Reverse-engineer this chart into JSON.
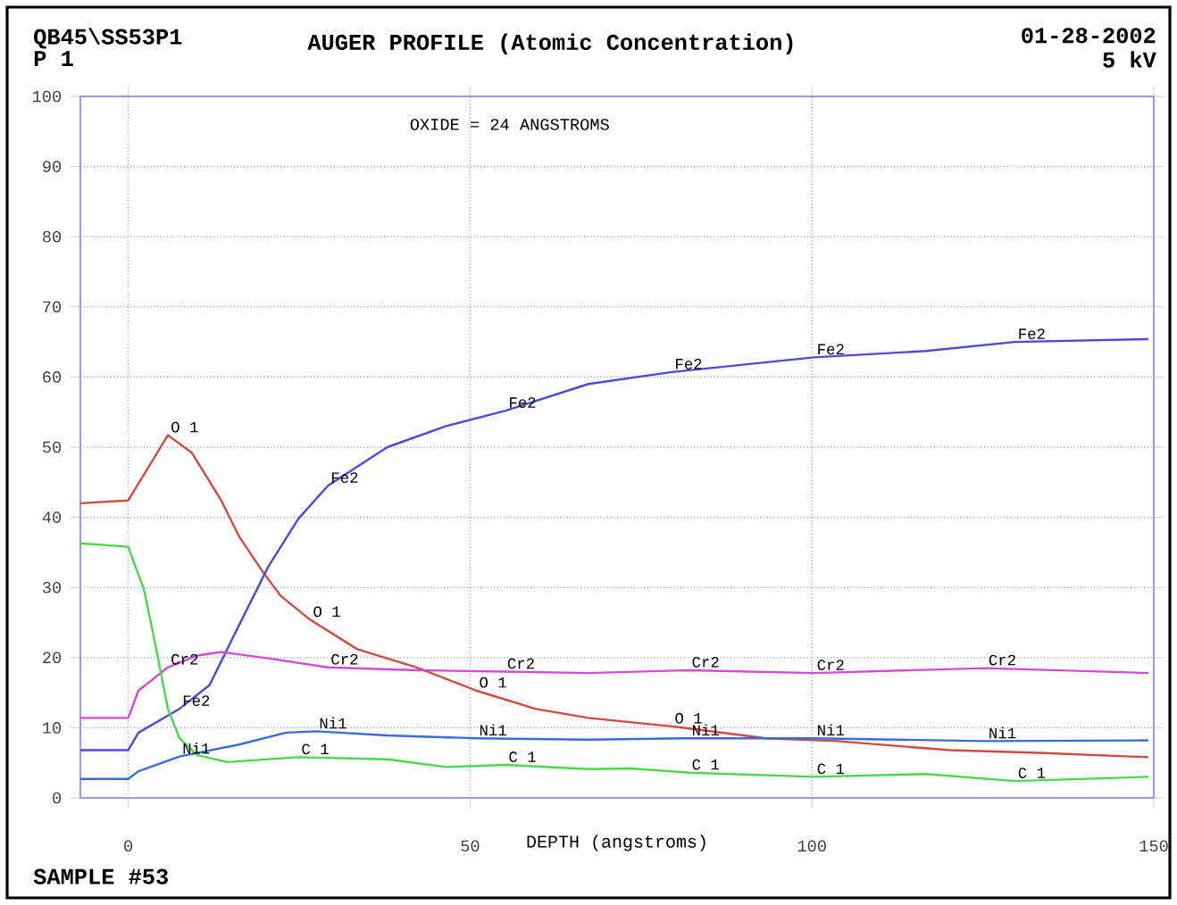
{
  "chart_data": {
    "type": "line",
    "title": "AUGER PROFILE (Atomic Concentration)",
    "xlabel": "DEPTH (angstroms)",
    "xlim": [
      -7,
      150
    ],
    "ylim": [
      0,
      100
    ],
    "xticks": [
      0,
      50,
      100,
      150
    ],
    "yticks": [
      0,
      10,
      20,
      30,
      40,
      50,
      60,
      70,
      80,
      90,
      100
    ],
    "grid": true,
    "legend": false,
    "marker": "none",
    "line_style": "solid",
    "series": [
      {
        "name": "O 1",
        "color": "#d04a40",
        "x": [
          -7,
          0,
          5.8,
          9.3,
          13.6,
          16.2,
          19.7,
          22.3,
          26.6,
          33.5,
          42.2,
          50.9,
          59.5,
          67.3,
          79.5,
          93.3,
          103.7,
          120.2,
          134,
          149.2
        ],
        "values": [
          42,
          42.4,
          51.7,
          49.2,
          42.4,
          37.3,
          32.2,
          28.8,
          25.4,
          21.2,
          18.6,
          15.3,
          12.7,
          11.4,
          10.2,
          8.5,
          8.1,
          6.8,
          6.4,
          5.8
        ]
      },
      {
        "name": "Fe2",
        "color": "#4a4ae0",
        "x": [
          -7,
          0,
          1.5,
          7.5,
          11.9,
          16.2,
          20.5,
          24.9,
          29.2,
          37.9,
          46.5,
          55.2,
          67.3,
          79.5,
          100.3,
          116.7,
          129.7,
          149.2
        ],
        "values": [
          6.8,
          6.8,
          9.3,
          12.7,
          16.1,
          24.6,
          33,
          39.8,
          44.5,
          50,
          53,
          55.2,
          59,
          60.7,
          62.8,
          63.7,
          65,
          65.4
        ]
      },
      {
        "name": "Cr2",
        "color": "#d24ad8",
        "x": [
          -7,
          0,
          1.5,
          5.8,
          10.1,
          13.6,
          20.5,
          29.2,
          42.2,
          55,
          67.3,
          82,
          100.3,
          125.4,
          149.2
        ],
        "values": [
          11.4,
          11.4,
          15.3,
          18.6,
          20.3,
          20.8,
          19.9,
          18.6,
          18.2,
          18,
          17.8,
          18.2,
          17.8,
          18.5,
          17.8
        ]
      },
      {
        "name": "Ni1",
        "color": "#3a6ae0",
        "x": [
          -7,
          0,
          1.5,
          7.5,
          16.2,
          23.1,
          27.5,
          37.9,
          50.9,
          67.3,
          82,
          100.3,
          125.4,
          149.2
        ],
        "values": [
          2.7,
          2.7,
          3.8,
          5.9,
          7.6,
          9.3,
          9.5,
          8.9,
          8.5,
          8.3,
          8.5,
          8.5,
          8.1,
          8.2
        ]
      },
      {
        "name": "C 1",
        "color": "#4ad84a",
        "x": [
          -7,
          0,
          2.3,
          4.1,
          5.8,
          7.5,
          10.1,
          14.5,
          24.9,
          37.9,
          46.5,
          55.2,
          67.3,
          73.4,
          82,
          100.3,
          116.7,
          129.7,
          149.2
        ],
        "values": [
          36.3,
          35.8,
          29.7,
          21.2,
          12.7,
          8.5,
          6.1,
          5.1,
          5.8,
          5.5,
          4.4,
          4.7,
          4.1,
          4.2,
          3.6,
          3.0,
          3.4,
          2.4,
          3.0
        ]
      }
    ],
    "annotations": [
      "QB45\\SS53P1",
      "P 1",
      "01-28-2002",
      "5 kV",
      "OXIDE = 24 ANGSTROMS",
      "SAMPLE #53",
      {
        "text": "O 1",
        "x": 5.8,
        "y": 51.7
      },
      {
        "text": "O 1",
        "x": 50.9,
        "y": 15.3
      },
      {
        "text": "O 1",
        "x": 79.5,
        "y": 10.2
      },
      {
        "text": "Fe2",
        "x": 7.5,
        "y": 12.7
      },
      {
        "text": "Fe2",
        "x": 55.2,
        "y": 55.2
      },
      {
        "text": "Fe2",
        "x": 79.5,
        "y": 60.7
      },
      {
        "text": "Fe2",
        "x": 100.3,
        "y": 62.8
      },
      {
        "text": "Fe2",
        "x": 129.7,
        "y": 65
      },
      {
        "text": "Cr2",
        "x": 5.8,
        "y": 18.6
      },
      {
        "text": "Cr2",
        "x": 55,
        "y": 18
      },
      {
        "text": "Cr2",
        "x": 82,
        "y": 18.2
      },
      {
        "text": "Cr2",
        "x": 100.3,
        "y": 17.8
      },
      {
        "text": "Cr2",
        "x": 125.4,
        "y": 18.5
      },
      {
        "text": "Ni1",
        "x": 7.5,
        "y": 5.9
      },
      {
        "text": "Ni1",
        "x": 50.9,
        "y": 8.5
      },
      {
        "text": "Ni1",
        "x": 82,
        "y": 8.5
      },
      {
        "text": "Ni1",
        "x": 100.3,
        "y": 8.5
      },
      {
        "text": "Ni1",
        "x": 125.4,
        "y": 8.1
      },
      {
        "text": "C 1",
        "x": 55.2,
        "y": 4.7
      },
      {
        "text": "C 1",
        "x": 82,
        "y": 3.6
      },
      {
        "text": "C 1",
        "x": 100.3,
        "y": 3.0
      },
      {
        "text": "C 1",
        "x": 129.7,
        "y": 2.4
      }
    ]
  }
}
